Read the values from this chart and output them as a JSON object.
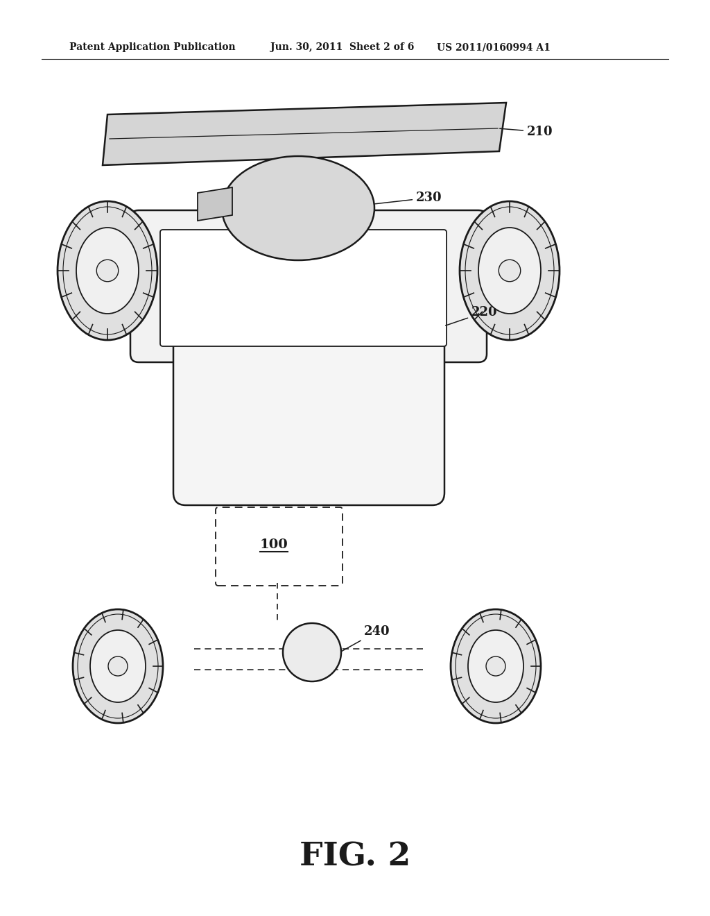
{
  "bg_color": "#ffffff",
  "line_color": "#1a1a1a",
  "header_text_left": "Patent Application Publication",
  "header_text_mid": "Jun. 30, 2011  Sheet 2 of 6",
  "header_text_right": "US 2011/0160994 A1",
  "fig_label": "FIG. 2",
  "label_210": "210",
  "label_230": "230",
  "label_220": "220",
  "label_100": "100",
  "label_240": "240"
}
